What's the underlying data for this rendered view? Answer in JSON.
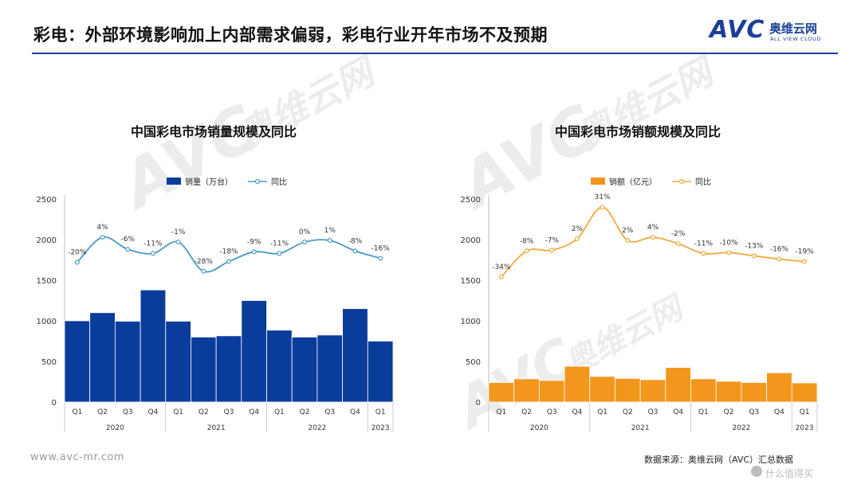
{
  "header": {
    "title": "彩电：外部环境影响加上内部需求偏弱，彩电行业开年市场不及预期",
    "logo_avc": "AVC",
    "logo_cn": "奥维云网",
    "logo_en": "ALL VIEW CLOUD"
  },
  "footer": {
    "url": "www.avc-mr.com",
    "source": "数据来源：奥维云网（AVC）汇总数据",
    "corner": "什么值得买"
  },
  "watermark": {
    "cn": "奥维云网",
    "en": "ALL VIEW CLOUD",
    "avc": "AVC"
  },
  "colors": {
    "brand": "#1d3f9a",
    "bar_left": "#0a3c9c",
    "line_left": "#4a9ac4",
    "bar_right": "#f2961c",
    "line_right": "#f0a93a"
  },
  "chart_data": [
    {
      "type": "bar",
      "title": "中国彩电市场销量规模及同比",
      "categories": [
        "Q1",
        "Q2",
        "Q3",
        "Q4",
        "Q1",
        "Q2",
        "Q3",
        "Q4",
        "Q1",
        "Q2",
        "Q3",
        "Q4",
        "Q1"
      ],
      "year_groups": [
        {
          "label": "2020",
          "count": 4
        },
        {
          "label": "2021",
          "count": 4
        },
        {
          "label": "2022",
          "count": 4
        },
        {
          "label": "2023",
          "count": 1
        }
      ],
      "series": [
        {
          "name": "销量（万台）",
          "kind": "bar",
          "values": [
            1000,
            1100,
            995,
            1380,
            995,
            800,
            815,
            1250,
            885,
            800,
            825,
            1150,
            750
          ]
        },
        {
          "name": "同比",
          "kind": "line",
          "labels": [
            "-20%",
            "4%",
            "-6%",
            "-11%",
            "-1%",
            "-28%",
            "-18%",
            "-9%",
            "-11%",
            "0%",
            "1%",
            "-8%",
            "-16%"
          ],
          "plot_values": [
            1720,
            2030,
            1880,
            1830,
            1970,
            1610,
            1730,
            1850,
            1830,
            1970,
            1990,
            1860,
            1770
          ]
        }
      ],
      "ylim": [
        0,
        2500
      ],
      "yticks": [
        0,
        500,
        1000,
        1500,
        2000,
        2500
      ]
    },
    {
      "type": "bar",
      "title": "中国彩电市场销额规模及同比",
      "categories": [
        "Q1",
        "Q2",
        "Q3",
        "Q4",
        "Q1",
        "Q2",
        "Q3",
        "Q4",
        "Q1",
        "Q2",
        "Q3",
        "Q4",
        "Q1"
      ],
      "year_groups": [
        {
          "label": "2020",
          "count": 4
        },
        {
          "label": "2021",
          "count": 4
        },
        {
          "label": "2022",
          "count": 4
        },
        {
          "label": "2023",
          "count": 1
        }
      ],
      "series": [
        {
          "name": "销额（亿元）",
          "kind": "bar",
          "values": [
            240,
            285,
            265,
            440,
            315,
            290,
            275,
            425,
            285,
            255,
            240,
            360,
            235
          ]
        },
        {
          "name": "同比",
          "kind": "line",
          "labels": [
            "-34%",
            "-8%",
            "-7%",
            "2%",
            "31%",
            "2%",
            "4%",
            "-2%",
            "-11%",
            "-10%",
            "-13%",
            "-16%",
            "-19%"
          ],
          "plot_values": [
            1540,
            1860,
            1870,
            2010,
            2400,
            1990,
            2030,
            1950,
            1830,
            1840,
            1800,
            1760,
            1730
          ]
        }
      ],
      "ylim": [
        0,
        2500
      ],
      "yticks": [
        0,
        500,
        1000,
        1500,
        2000,
        2500
      ]
    }
  ]
}
